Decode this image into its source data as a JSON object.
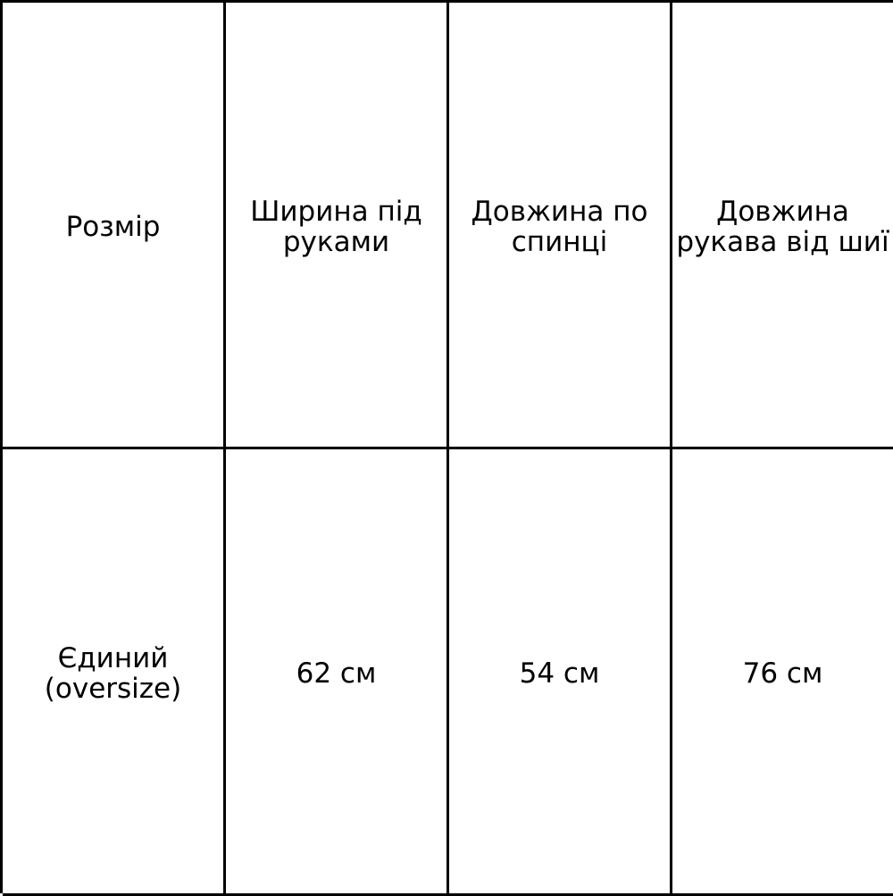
{
  "table": {
    "headers": [
      "Розмір",
      "Ширина під руками",
      "Довжина по спинці",
      "Довжина рукава від шиї"
    ],
    "rows": [
      [
        "Єдиний (oversize)",
        "62 см",
        "54 см",
        "76 см"
      ]
    ]
  }
}
